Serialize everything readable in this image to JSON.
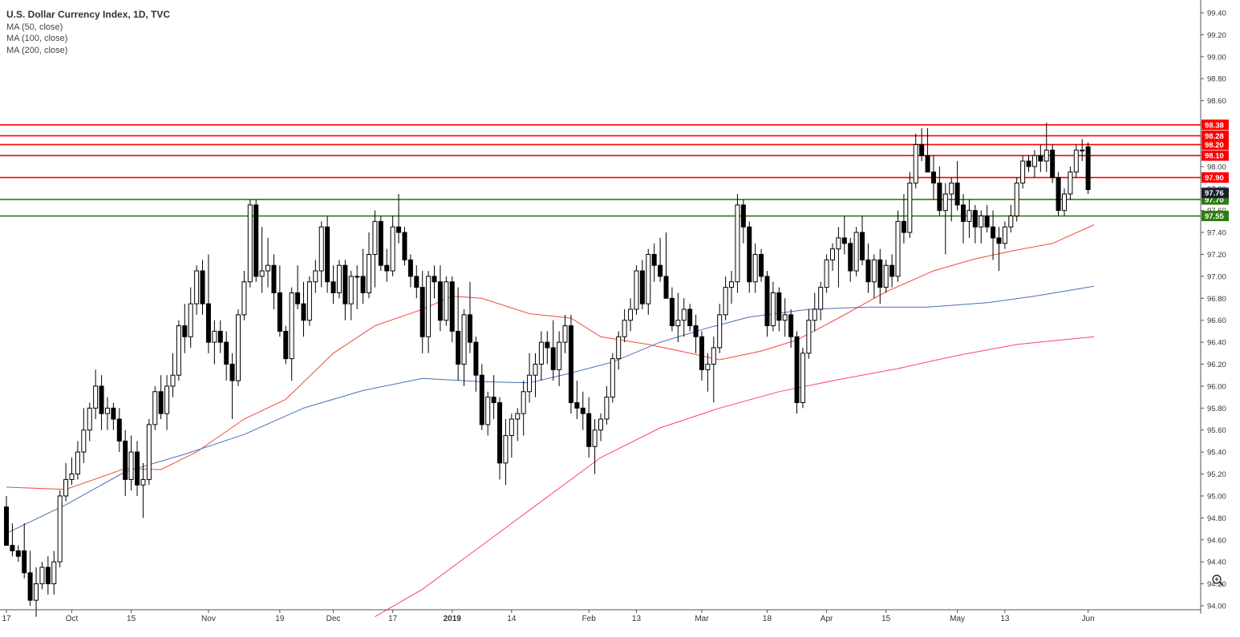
{
  "legend": {
    "title": "U.S. Dollar Currency Index, 1D, TVC",
    "indicators": [
      "MA (50, close)",
      "MA (100, close)",
      "MA (200, close)"
    ]
  },
  "colors": {
    "resistance": "#ff0000",
    "support": "#2e7d10",
    "ma50": "#f04a3a",
    "ma100": "#4a6fb5",
    "ma200": "#ff3f7f",
    "current_tag": "#1a1f2e",
    "axis": "#555555",
    "grid": "#e6e6e6"
  },
  "chart_data": {
    "type": "candlestick",
    "title": "U.S. Dollar Currency Index, 1D, TVC",
    "y_axis": {
      "min": 94.0,
      "max": 99.4,
      "ticks": [
        "94.00",
        "94.20",
        "94.40",
        "94.60",
        "94.80",
        "95.00",
        "95.20",
        "95.40",
        "95.60",
        "95.80",
        "96.00",
        "96.20",
        "96.40",
        "96.60",
        "96.80",
        "97.00",
        "97.20",
        "97.40",
        "97.60",
        "97.80",
        "98.00",
        "98.20",
        "98.40",
        "98.60",
        "98.80",
        "99.00",
        "99.20",
        "99.40"
      ]
    },
    "x_axis": {
      "ticks": [
        {
          "label": "17",
          "index": 0
        },
        {
          "label": "Oct",
          "index": 11
        },
        {
          "label": "15",
          "index": 21
        },
        {
          "label": "Nov",
          "index": 34
        },
        {
          "label": "19",
          "index": 46
        },
        {
          "label": "Dec",
          "index": 55
        },
        {
          "label": "17",
          "index": 65
        },
        {
          "label": "2019",
          "index": 75
        },
        {
          "label": "14",
          "index": 85
        },
        {
          "label": "Feb",
          "index": 98
        },
        {
          "label": "13",
          "index": 106
        },
        {
          "label": "Mar",
          "index": 117
        },
        {
          "label": "18",
          "index": 128
        },
        {
          "label": "Apr",
          "index": 138
        },
        {
          "label": "15",
          "index": 148
        },
        {
          "label": "May",
          "index": 160
        },
        {
          "label": "13",
          "index": 168
        },
        {
          "label": "Jun",
          "index": 182
        }
      ]
    },
    "horizontal_levels": [
      {
        "label": "98.38",
        "value": 98.38,
        "kind": "resistance"
      },
      {
        "label": "98.28",
        "value": 98.28,
        "kind": "resistance"
      },
      {
        "label": "98.20",
        "value": 98.2,
        "kind": "resistance"
      },
      {
        "label": "98.10",
        "value": 98.1,
        "kind": "resistance"
      },
      {
        "label": "97.90",
        "value": 97.9,
        "kind": "resistance"
      },
      {
        "label": "97.70",
        "value": 97.7,
        "kind": "support"
      },
      {
        "label": "97.55",
        "value": 97.55,
        "kind": "support"
      }
    ],
    "current_price": {
      "label": "97.76",
      "value": 97.76
    },
    "candles": [
      [
        94.9,
        95.0,
        94.6,
        94.55
      ],
      [
        94.55,
        94.75,
        94.45,
        94.5
      ],
      [
        94.5,
        94.55,
        94.4,
        94.45
      ],
      [
        94.5,
        94.75,
        94.25,
        94.3
      ],
      [
        94.3,
        94.5,
        94.0,
        94.05
      ],
      [
        94.05,
        94.35,
        93.9,
        94.2
      ],
      [
        94.2,
        94.4,
        94.15,
        94.35
      ],
      [
        94.35,
        94.45,
        94.1,
        94.2
      ],
      [
        94.2,
        94.5,
        94.1,
        94.4
      ],
      [
        94.4,
        95.05,
        94.35,
        95.0
      ],
      [
        95.0,
        95.3,
        94.95,
        95.15
      ],
      [
        95.15,
        95.35,
        95.1,
        95.2
      ],
      [
        95.2,
        95.5,
        95.15,
        95.4
      ],
      [
        95.4,
        95.8,
        95.3,
        95.6
      ],
      [
        95.6,
        95.85,
        95.5,
        95.8
      ],
      [
        95.8,
        96.15,
        95.7,
        96.0
      ],
      [
        96.0,
        96.1,
        95.6,
        95.75
      ],
      [
        95.75,
        95.9,
        95.6,
        95.8
      ],
      [
        95.8,
        95.85,
        95.6,
        95.7
      ],
      [
        95.7,
        95.8,
        95.4,
        95.5
      ],
      [
        95.5,
        95.6,
        95.0,
        95.15
      ],
      [
        95.15,
        95.55,
        95.05,
        95.4
      ],
      [
        95.4,
        95.5,
        95.0,
        95.1
      ],
      [
        95.1,
        95.3,
        94.8,
        95.15
      ],
      [
        95.15,
        95.7,
        95.1,
        95.65
      ],
      [
        95.65,
        96.0,
        95.6,
        95.95
      ],
      [
        95.95,
        96.1,
        95.7,
        95.75
      ],
      [
        95.75,
        96.1,
        95.6,
        96.0
      ],
      [
        96.0,
        96.3,
        95.9,
        96.1
      ],
      [
        96.1,
        96.6,
        96.05,
        96.55
      ],
      [
        96.55,
        96.75,
        96.3,
        96.45
      ],
      [
        96.45,
        96.9,
        96.35,
        96.75
      ],
      [
        96.75,
        97.1,
        96.65,
        97.05
      ],
      [
        97.05,
        97.15,
        96.65,
        96.75
      ],
      [
        96.75,
        97.2,
        96.3,
        96.4
      ],
      [
        96.4,
        96.6,
        96.2,
        96.5
      ],
      [
        96.5,
        96.6,
        96.3,
        96.4
      ],
      [
        96.4,
        96.5,
        96.05,
        96.2
      ],
      [
        96.2,
        96.3,
        95.7,
        96.05
      ],
      [
        96.05,
        96.7,
        96.0,
        96.65
      ],
      [
        96.65,
        97.05,
        96.6,
        96.95
      ],
      [
        96.95,
        97.7,
        96.9,
        97.65
      ],
      [
        97.65,
        97.7,
        96.95,
        97.0
      ],
      [
        97.0,
        97.45,
        96.85,
        97.05
      ],
      [
        97.05,
        97.35,
        96.9,
        97.1
      ],
      [
        97.1,
        97.2,
        96.7,
        96.85
      ],
      [
        96.85,
        97.1,
        96.45,
        96.5
      ],
      [
        96.5,
        96.55,
        96.2,
        96.25
      ],
      [
        96.25,
        96.9,
        96.05,
        96.85
      ],
      [
        96.85,
        97.1,
        96.7,
        96.75
      ],
      [
        96.75,
        96.95,
        96.45,
        96.6
      ],
      [
        96.6,
        97.0,
        96.55,
        96.95
      ],
      [
        96.95,
        97.15,
        96.85,
        97.05
      ],
      [
        97.05,
        97.5,
        96.9,
        97.45
      ],
      [
        97.45,
        97.55,
        96.85,
        96.95
      ],
      [
        96.95,
        97.1,
        96.75,
        96.85
      ],
      [
        96.85,
        97.15,
        96.8,
        97.1
      ],
      [
        97.1,
        97.15,
        96.6,
        96.75
      ],
      [
        96.75,
        97.05,
        96.6,
        97.0
      ],
      [
        97.0,
        97.1,
        96.7,
        97.0
      ],
      [
        97.0,
        97.25,
        96.75,
        96.85
      ],
      [
        96.85,
        97.4,
        96.8,
        97.2
      ],
      [
        97.2,
        97.6,
        96.9,
        97.5
      ],
      [
        97.5,
        97.55,
        97.05,
        97.1
      ],
      [
        97.1,
        97.25,
        96.95,
        97.05
      ],
      [
        97.05,
        97.55,
        97.0,
        97.45
      ],
      [
        97.45,
        97.75,
        97.3,
        97.4
      ],
      [
        97.4,
        97.45,
        97.1,
        97.15
      ],
      [
        97.15,
        97.2,
        96.9,
        97.0
      ],
      [
        97.0,
        97.1,
        96.8,
        96.9
      ],
      [
        96.9,
        97.05,
        96.3,
        96.45
      ],
      [
        96.45,
        97.05,
        96.3,
        97.0
      ],
      [
        97.0,
        97.1,
        96.8,
        96.95
      ],
      [
        96.95,
        97.1,
        96.5,
        96.6
      ],
      [
        96.6,
        97.0,
        96.55,
        96.95
      ],
      [
        96.95,
        97.0,
        96.4,
        96.5
      ],
      [
        96.5,
        96.9,
        96.05,
        96.2
      ],
      [
        96.2,
        96.7,
        96.0,
        96.65
      ],
      [
        96.65,
        96.95,
        96.3,
        96.4
      ],
      [
        96.4,
        96.45,
        95.95,
        96.1
      ],
      [
        96.1,
        96.2,
        95.6,
        95.65
      ],
      [
        95.65,
        95.95,
        95.55,
        95.9
      ],
      [
        95.9,
        96.1,
        95.7,
        95.85
      ],
      [
        95.85,
        95.9,
        95.15,
        95.3
      ],
      [
        95.3,
        95.7,
        95.1,
        95.55
      ],
      [
        95.55,
        95.75,
        95.35,
        95.7
      ],
      [
        95.7,
        95.8,
        95.5,
        95.75
      ],
      [
        95.75,
        96.05,
        95.55,
        95.95
      ],
      [
        95.95,
        96.3,
        95.85,
        96.1
      ],
      [
        96.1,
        96.3,
        95.9,
        96.2
      ],
      [
        96.2,
        96.5,
        96.05,
        96.4
      ],
      [
        96.4,
        96.5,
        96.2,
        96.35
      ],
      [
        96.35,
        96.6,
        96.05,
        96.15
      ],
      [
        96.15,
        96.5,
        96.0,
        96.4
      ],
      [
        96.4,
        96.65,
        96.3,
        96.55
      ],
      [
        96.55,
        96.65,
        95.75,
        95.85
      ],
      [
        95.85,
        96.05,
        95.7,
        95.8
      ],
      [
        95.8,
        95.95,
        95.6,
        95.75
      ],
      [
        95.75,
        95.9,
        95.35,
        95.45
      ],
      [
        95.45,
        95.7,
        95.2,
        95.6
      ],
      [
        95.6,
        95.75,
        95.5,
        95.7
      ],
      [
        95.7,
        96.0,
        95.65,
        95.9
      ],
      [
        95.9,
        96.3,
        95.85,
        96.25
      ],
      [
        96.25,
        96.5,
        96.15,
        96.45
      ],
      [
        96.45,
        96.7,
        96.4,
        96.6
      ],
      [
        96.6,
        96.8,
        96.5,
        96.7
      ],
      [
        96.7,
        97.1,
        96.65,
        97.05
      ],
      [
        97.05,
        97.15,
        96.7,
        96.75
      ],
      [
        96.75,
        97.25,
        96.65,
        97.2
      ],
      [
        97.2,
        97.3,
        96.95,
        97.1
      ],
      [
        97.1,
        97.35,
        96.95,
        97.0
      ],
      [
        97.0,
        97.4,
        96.85,
        96.8
      ],
      [
        96.8,
        96.9,
        96.5,
        96.55
      ],
      [
        96.55,
        96.85,
        96.4,
        96.6
      ],
      [
        96.6,
        96.8,
        96.45,
        96.7
      ],
      [
        96.7,
        96.75,
        96.5,
        96.55
      ],
      [
        96.55,
        96.65,
        96.3,
        96.45
      ],
      [
        96.45,
        96.5,
        96.05,
        96.15
      ],
      [
        96.15,
        96.3,
        95.95,
        96.2
      ],
      [
        96.2,
        96.45,
        95.85,
        96.35
      ],
      [
        96.35,
        96.75,
        96.3,
        96.65
      ],
      [
        96.65,
        97.0,
        96.6,
        96.9
      ],
      [
        96.9,
        97.05,
        96.75,
        96.95
      ],
      [
        96.95,
        97.75,
        96.85,
        97.65
      ],
      [
        97.65,
        97.7,
        97.3,
        97.45
      ],
      [
        97.45,
        97.5,
        96.85,
        96.95
      ],
      [
        96.95,
        97.3,
        96.85,
        97.2
      ],
      [
        97.2,
        97.25,
        96.95,
        97.0
      ],
      [
        97.0,
        97.05,
        96.45,
        96.55
      ],
      [
        96.55,
        96.95,
        96.5,
        96.85
      ],
      [
        96.85,
        96.9,
        96.5,
        96.6
      ],
      [
        96.6,
        96.8,
        96.45,
        96.65
      ],
      [
        96.65,
        96.7,
        96.35,
        96.45
      ],
      [
        96.45,
        96.5,
        95.75,
        95.85
      ],
      [
        95.85,
        96.35,
        95.8,
        96.3
      ],
      [
        96.3,
        96.7,
        96.25,
        96.6
      ],
      [
        96.6,
        96.85,
        96.5,
        96.7
      ],
      [
        96.7,
        96.95,
        96.6,
        96.9
      ],
      [
        96.9,
        97.2,
        96.85,
        97.15
      ],
      [
        97.15,
        97.3,
        97.05,
        97.25
      ],
      [
        97.25,
        97.45,
        96.9,
        97.35
      ],
      [
        97.35,
        97.55,
        97.2,
        97.3
      ],
      [
        97.3,
        97.35,
        96.95,
        97.05
      ],
      [
        97.05,
        97.45,
        97.0,
        97.4
      ],
      [
        97.4,
        97.55,
        97.1,
        97.15
      ],
      [
        97.15,
        97.3,
        96.85,
        96.95
      ],
      [
        96.95,
        97.2,
        96.8,
        97.15
      ],
      [
        97.15,
        97.25,
        96.75,
        96.9
      ],
      [
        96.9,
        97.15,
        96.85,
        97.1
      ],
      [
        97.1,
        97.2,
        96.9,
        97.0
      ],
      [
        97.0,
        97.6,
        96.95,
        97.5
      ],
      [
        97.5,
        97.75,
        97.3,
        97.4
      ],
      [
        97.4,
        97.95,
        97.35,
        97.85
      ],
      [
        97.85,
        98.3,
        97.8,
        98.2
      ],
      [
        98.2,
        98.35,
        98.05,
        98.1
      ],
      [
        98.1,
        98.35,
        97.95,
        97.95
      ],
      [
        97.95,
        98.1,
        97.7,
        97.85
      ],
      [
        97.85,
        98.0,
        97.55,
        97.6
      ],
      [
        97.6,
        97.85,
        97.2,
        97.75
      ],
      [
        97.75,
        97.9,
        97.5,
        97.85
      ],
      [
        97.85,
        98.05,
        97.6,
        97.65
      ],
      [
        97.65,
        97.75,
        97.3,
        97.5
      ],
      [
        97.5,
        97.7,
        97.35,
        97.6
      ],
      [
        97.6,
        97.65,
        97.3,
        97.45
      ],
      [
        97.45,
        97.6,
        97.3,
        97.55
      ],
      [
        97.55,
        97.65,
        97.4,
        97.45
      ],
      [
        97.45,
        97.6,
        97.15,
        97.35
      ],
      [
        97.35,
        97.45,
        97.05,
        97.3
      ],
      [
        97.3,
        97.5,
        97.25,
        97.45
      ],
      [
        97.45,
        97.65,
        97.4,
        97.55
      ],
      [
        97.55,
        97.9,
        97.5,
        97.85
      ],
      [
        97.85,
        98.1,
        97.8,
        98.05
      ],
      [
        98.05,
        98.1,
        97.95,
        98.0
      ],
      [
        98.0,
        98.15,
        97.9,
        98.1
      ],
      [
        98.1,
        98.2,
        97.95,
        98.05
      ],
      [
        98.05,
        98.4,
        97.95,
        98.15
      ],
      [
        98.15,
        98.2,
        97.85,
        97.9
      ],
      [
        97.9,
        97.95,
        97.55,
        97.6
      ],
      [
        97.6,
        97.8,
        97.55,
        97.75
      ],
      [
        97.75,
        98.0,
        97.7,
        97.95
      ],
      [
        97.95,
        98.2,
        97.9,
        98.15
      ],
      [
        98.15,
        98.25,
        98.05,
        98.15
      ],
      [
        98.18,
        98.22,
        97.75,
        97.79
      ]
    ],
    "ma50": [
      [
        0,
        95.08
      ],
      [
        10,
        95.06
      ],
      [
        20,
        95.25
      ],
      [
        26,
        95.24
      ],
      [
        32,
        95.4
      ],
      [
        40,
        95.7
      ],
      [
        47,
        95.88
      ],
      [
        55,
        96.3
      ],
      [
        62,
        96.55
      ],
      [
        70,
        96.7
      ],
      [
        75,
        96.82
      ],
      [
        80,
        96.8
      ],
      [
        88,
        96.66
      ],
      [
        95,
        96.62
      ],
      [
        100,
        96.45
      ],
      [
        108,
        96.38
      ],
      [
        115,
        96.3
      ],
      [
        120,
        96.24
      ],
      [
        127,
        96.32
      ],
      [
        133,
        96.42
      ],
      [
        140,
        96.62
      ],
      [
        148,
        96.86
      ],
      [
        156,
        97.05
      ],
      [
        163,
        97.16
      ],
      [
        170,
        97.24
      ],
      [
        176,
        97.3
      ],
      [
        183,
        97.47
      ]
    ],
    "ma100": [
      [
        0,
        94.66
      ],
      [
        10,
        94.92
      ],
      [
        20,
        95.22
      ],
      [
        30,
        95.38
      ],
      [
        40,
        95.56
      ],
      [
        50,
        95.8
      ],
      [
        60,
        95.96
      ],
      [
        70,
        96.07
      ],
      [
        80,
        96.04
      ],
      [
        88,
        96.03
      ],
      [
        95,
        96.12
      ],
      [
        102,
        96.22
      ],
      [
        110,
        96.4
      ],
      [
        118,
        96.53
      ],
      [
        125,
        96.63
      ],
      [
        135,
        96.7
      ],
      [
        145,
        96.72
      ],
      [
        155,
        96.72
      ],
      [
        165,
        96.76
      ],
      [
        173,
        96.82
      ],
      [
        183,
        96.91
      ]
    ],
    "ma200": [
      [
        62,
        93.9
      ],
      [
        70,
        94.15
      ],
      [
        80,
        94.55
      ],
      [
        90,
        94.95
      ],
      [
        100,
        95.35
      ],
      [
        110,
        95.62
      ],
      [
        120,
        95.8
      ],
      [
        130,
        95.95
      ],
      [
        140,
        96.06
      ],
      [
        150,
        96.16
      ],
      [
        160,
        96.28
      ],
      [
        170,
        96.38
      ],
      [
        183,
        96.45
      ]
    ]
  }
}
